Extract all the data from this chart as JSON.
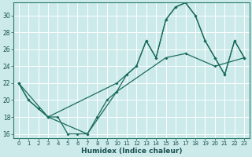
{
  "xlabel": "Humidex (Indice chaleur)",
  "bg_color": "#cceaea",
  "grid_color": "#ffffff",
  "line_color": "#1a6b5a",
  "xlim": [
    -0.5,
    23.5
  ],
  "ylim": [
    15.5,
    31.5
  ],
  "xticks": [
    0,
    1,
    2,
    3,
    4,
    5,
    6,
    7,
    8,
    9,
    10,
    11,
    12,
    13,
    14,
    15,
    16,
    17,
    18,
    19,
    20,
    21,
    22,
    23
  ],
  "yticks": [
    16,
    18,
    20,
    22,
    24,
    26,
    28,
    30
  ],
  "line1_x": [
    0,
    1,
    2,
    3,
    4,
    5,
    6,
    7,
    8,
    9,
    10,
    11,
    12,
    13,
    14,
    15,
    16,
    17,
    18,
    19,
    20,
    21,
    22,
    23
  ],
  "line1_y": [
    22,
    20,
    19,
    18,
    18,
    16,
    16,
    16,
    18,
    20,
    21,
    23,
    24,
    27,
    25,
    29.5,
    31,
    31.5,
    30,
    27,
    25,
    23,
    27,
    25
  ],
  "line2_x": [
    0,
    1,
    2,
    3,
    10,
    11,
    12,
    13,
    14,
    15,
    16,
    17,
    18,
    19,
    20,
    21,
    22,
    23
  ],
  "line2_y": [
    22,
    20,
    19,
    18,
    22,
    23,
    24,
    27,
    25,
    29.5,
    31,
    31.5,
    30,
    27,
    25,
    23,
    27,
    25
  ],
  "line3_x": [
    0,
    3,
    7,
    10,
    15,
    17,
    20,
    23
  ],
  "line3_y": [
    22,
    18,
    16,
    21,
    25,
    25.5,
    24,
    25
  ]
}
